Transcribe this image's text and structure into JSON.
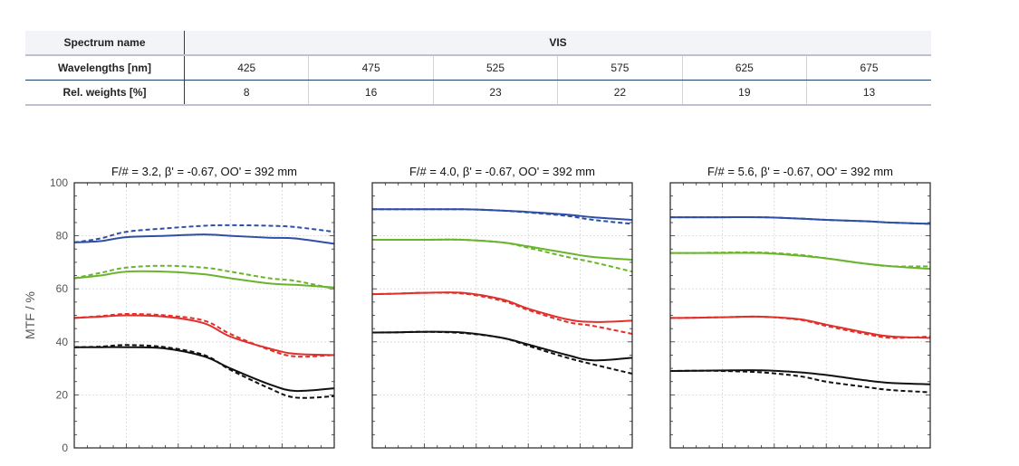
{
  "table": {
    "header_label": "Spectrum name",
    "header_value": "VIS",
    "rows": [
      {
        "label": "Wavelengths [nm]",
        "values": [
          "425",
          "475",
          "525",
          "575",
          "625",
          "675"
        ]
      },
      {
        "label": "Rel. weights [%]",
        "values": [
          "8",
          "16",
          "23",
          "22",
          "19",
          "13"
        ]
      }
    ]
  },
  "chart_data": [
    {
      "type": "line",
      "title": "F/# = 3.2, β' = -0.67, OO' = 392 mm",
      "ylabel": "MTF / %",
      "ylim": [
        0,
        100
      ],
      "yticks": [
        "0",
        "20",
        "40",
        "60",
        "80",
        "100"
      ],
      "xlim": [
        0,
        1
      ],
      "grid": true,
      "series": [
        {
          "color": "#2e4fa5",
          "style": "solid",
          "x": [
            0,
            0.1,
            0.2,
            0.35,
            0.5,
            0.6,
            0.75,
            0.85,
            1.0
          ],
          "y": [
            77.5,
            78,
            79.5,
            80,
            80.5,
            80,
            79.3,
            79,
            77
          ]
        },
        {
          "color": "#2e4fa5",
          "style": "dashed",
          "x": [
            0,
            0.1,
            0.2,
            0.35,
            0.5,
            0.6,
            0.75,
            0.85,
            1.0
          ],
          "y": [
            77.5,
            79,
            81.5,
            82.8,
            83.8,
            84,
            83.8,
            83.3,
            81.5
          ]
        },
        {
          "color": "#6ab42d",
          "style": "solid",
          "x": [
            0,
            0.1,
            0.2,
            0.35,
            0.5,
            0.6,
            0.75,
            0.85,
            1.0
          ],
          "y": [
            64,
            65,
            66.5,
            66.5,
            65.5,
            64,
            62,
            61.5,
            60.5
          ]
        },
        {
          "color": "#6ab42d",
          "style": "dashed",
          "x": [
            0,
            0.1,
            0.2,
            0.35,
            0.5,
            0.6,
            0.75,
            0.85,
            1.0
          ],
          "y": [
            64,
            66,
            68,
            68.7,
            68,
            66.5,
            64,
            63,
            60
          ]
        },
        {
          "color": "#e0302b",
          "style": "solid",
          "x": [
            0,
            0.1,
            0.2,
            0.35,
            0.5,
            0.6,
            0.75,
            0.85,
            1.0
          ],
          "y": [
            49,
            49.5,
            50,
            49.5,
            47,
            42,
            37.5,
            35.5,
            35
          ]
        },
        {
          "color": "#e0302b",
          "style": "dashed",
          "x": [
            0,
            0.1,
            0.2,
            0.35,
            0.5,
            0.6,
            0.75,
            0.85,
            1.0
          ],
          "y": [
            49,
            49.7,
            50.5,
            50,
            48,
            43,
            37,
            34.5,
            35
          ]
        },
        {
          "color": "#111111",
          "style": "solid",
          "x": [
            0,
            0.1,
            0.2,
            0.35,
            0.5,
            0.6,
            0.75,
            0.85,
            1.0
          ],
          "y": [
            38,
            38,
            38,
            37.5,
            34.5,
            30,
            24,
            21.5,
            22.5
          ]
        },
        {
          "color": "#111111",
          "style": "dashed",
          "x": [
            0,
            0.1,
            0.2,
            0.35,
            0.5,
            0.6,
            0.75,
            0.85,
            1.0
          ],
          "y": [
            38,
            38.2,
            38.8,
            38,
            35,
            29.5,
            22.5,
            19,
            19.5
          ]
        }
      ]
    },
    {
      "type": "line",
      "title": "F/# = 4.0, β' = -0.67, OO' = 392 mm",
      "ylim": [
        0,
        100
      ],
      "xlim": [
        0,
        1
      ],
      "grid": true,
      "series": [
        {
          "color": "#2e4fa5",
          "style": "solid",
          "x": [
            0,
            0.1,
            0.2,
            0.35,
            0.5,
            0.6,
            0.75,
            0.85,
            1.0
          ],
          "y": [
            90,
            90,
            90,
            90,
            89.5,
            89,
            88,
            87,
            86
          ]
        },
        {
          "color": "#2e4fa5",
          "style": "dashed",
          "x": [
            0,
            0.1,
            0.2,
            0.35,
            0.5,
            0.6,
            0.75,
            0.85,
            1.0
          ],
          "y": [
            90,
            90,
            90,
            90,
            89.5,
            88.8,
            87.5,
            86,
            84.5
          ]
        },
        {
          "color": "#6ab42d",
          "style": "solid",
          "x": [
            0,
            0.1,
            0.2,
            0.35,
            0.5,
            0.6,
            0.75,
            0.85,
            1.0
          ],
          "y": [
            78.5,
            78.5,
            78.5,
            78.5,
            77.5,
            76,
            73.5,
            72,
            71
          ]
        },
        {
          "color": "#6ab42d",
          "style": "dashed",
          "x": [
            0,
            0.1,
            0.2,
            0.35,
            0.5,
            0.6,
            0.75,
            0.85,
            1.0
          ],
          "y": [
            78.5,
            78.5,
            78.5,
            78.5,
            77.5,
            75.5,
            72,
            70,
            66.5
          ]
        },
        {
          "color": "#e0302b",
          "style": "solid",
          "x": [
            0,
            0.1,
            0.2,
            0.35,
            0.5,
            0.6,
            0.75,
            0.85,
            1.0
          ],
          "y": [
            58,
            58.2,
            58.5,
            58.5,
            56,
            52.5,
            48.5,
            47.5,
            48
          ]
        },
        {
          "color": "#e0302b",
          "style": "dashed",
          "x": [
            0,
            0.1,
            0.2,
            0.35,
            0.5,
            0.6,
            0.75,
            0.85,
            1.0
          ],
          "y": [
            58,
            58.2,
            58.5,
            58.2,
            55.5,
            52,
            47.5,
            46,
            43
          ]
        },
        {
          "color": "#111111",
          "style": "solid",
          "x": [
            0,
            0.1,
            0.2,
            0.35,
            0.5,
            0.6,
            0.75,
            0.85,
            1.0
          ],
          "y": [
            43.5,
            43.6,
            43.8,
            43.5,
            41.5,
            39,
            35,
            33,
            34
          ]
        },
        {
          "color": "#111111",
          "style": "dashed",
          "x": [
            0,
            0.1,
            0.2,
            0.35,
            0.5,
            0.6,
            0.75,
            0.85,
            1.0
          ],
          "y": [
            43.5,
            43.6,
            43.8,
            43.3,
            41.5,
            38.5,
            34,
            31.5,
            28
          ]
        }
      ]
    },
    {
      "type": "line",
      "title": "F/# = 5.6, β' = -0.67, OO' = 392 mm",
      "ylim": [
        0,
        100
      ],
      "xlim": [
        0,
        1
      ],
      "grid": true,
      "series": [
        {
          "color": "#2e4fa5",
          "style": "solid",
          "x": [
            0,
            0.1,
            0.2,
            0.35,
            0.5,
            0.6,
            0.75,
            0.85,
            1.0
          ],
          "y": [
            87,
            87,
            87,
            87,
            86.5,
            86,
            85.5,
            85,
            84.5
          ]
        },
        {
          "color": "#2e4fa5",
          "style": "dashed",
          "x": [
            0,
            0.1,
            0.2,
            0.35,
            0.5,
            0.6,
            0.75,
            0.85,
            1.0
          ],
          "y": [
            87,
            87,
            87,
            87,
            86.5,
            86,
            85.5,
            85,
            84.5
          ]
        },
        {
          "color": "#6ab42d",
          "style": "solid",
          "x": [
            0,
            0.1,
            0.2,
            0.35,
            0.5,
            0.6,
            0.75,
            0.85,
            1.0
          ],
          "y": [
            73.5,
            73.5,
            73.5,
            73.5,
            72.5,
            71.5,
            69.5,
            68.5,
            67.5
          ]
        },
        {
          "color": "#6ab42d",
          "style": "dashed",
          "x": [
            0,
            0.1,
            0.2,
            0.35,
            0.5,
            0.6,
            0.75,
            0.85,
            1.0
          ],
          "y": [
            73.5,
            73.5,
            73.7,
            73.7,
            72.8,
            71.5,
            69.5,
            68.5,
            68.5
          ]
        },
        {
          "color": "#e0302b",
          "style": "solid",
          "x": [
            0,
            0.1,
            0.2,
            0.35,
            0.5,
            0.6,
            0.75,
            0.85,
            1.0
          ],
          "y": [
            49,
            49.1,
            49.3,
            49.5,
            48.5,
            46.5,
            43.5,
            42,
            41.5
          ]
        },
        {
          "color": "#e0302b",
          "style": "dashed",
          "x": [
            0,
            0.1,
            0.2,
            0.35,
            0.5,
            0.6,
            0.75,
            0.85,
            1.0
          ],
          "y": [
            49,
            49.1,
            49.3,
            49.5,
            48.3,
            46,
            43,
            41.5,
            42
          ]
        },
        {
          "color": "#111111",
          "style": "solid",
          "x": [
            0,
            0.1,
            0.2,
            0.35,
            0.5,
            0.6,
            0.75,
            0.85,
            1.0
          ],
          "y": [
            29,
            29.1,
            29.2,
            29.3,
            28.5,
            27.5,
            25.5,
            24.5,
            24
          ]
        },
        {
          "color": "#111111",
          "style": "dashed",
          "x": [
            0,
            0.1,
            0.2,
            0.35,
            0.5,
            0.6,
            0.75,
            0.85,
            1.0
          ],
          "y": [
            29,
            29.1,
            29,
            28.5,
            27,
            25,
            23,
            21.8,
            21
          ]
        }
      ]
    }
  ]
}
